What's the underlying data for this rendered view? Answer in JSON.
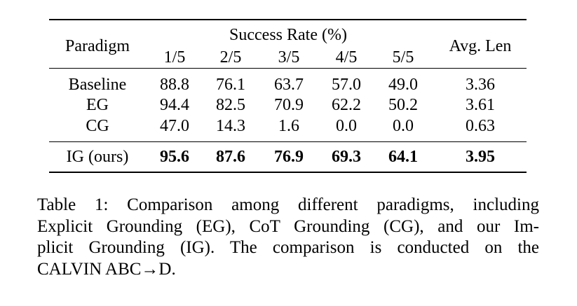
{
  "table": {
    "header": {
      "paradigm": "Paradigm",
      "success_rate": "Success Rate (%)",
      "cols": [
        "1/5",
        "2/5",
        "3/5",
        "4/5",
        "5/5"
      ],
      "avg_len": "Avg. Len"
    },
    "rows": [
      {
        "name": "Baseline",
        "values": [
          "88.8",
          "76.1",
          "63.7",
          "57.0",
          "49.0"
        ],
        "avg": "3.36"
      },
      {
        "name": "EG",
        "values": [
          "94.4",
          "82.5",
          "70.9",
          "62.2",
          "50.2"
        ],
        "avg": "3.61"
      },
      {
        "name": "CG",
        "values": [
          "47.0",
          "14.3",
          "1.6",
          "0.0",
          "0.0"
        ],
        "avg": "0.63"
      }
    ],
    "ours": {
      "name": "IG (ours)",
      "values": [
        "95.6",
        "87.6",
        "76.9",
        "69.3",
        "64.1"
      ],
      "avg": "3.95"
    }
  },
  "caption": {
    "lines": [
      "Table 1: Comparison among different paradigms, including",
      "Explicit Grounding (EG), CoT Grounding (CG), and our Im-",
      "plicit Grounding (IG). The comparison is conducted on the",
      "CALVIN ABC→D."
    ]
  }
}
